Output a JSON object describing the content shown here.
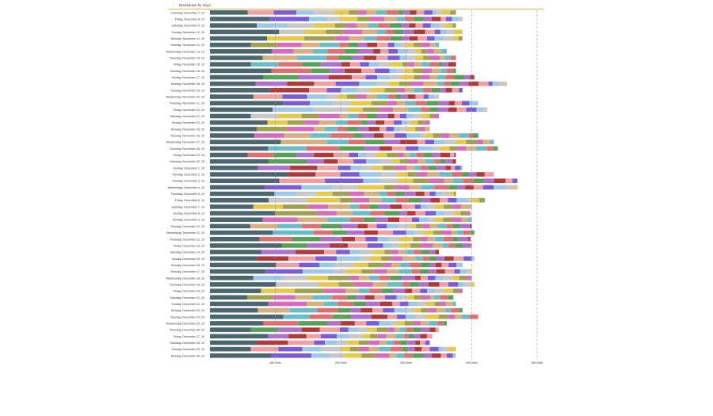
{
  "header": {
    "title": "Breakdown by Days",
    "chevron": "›"
  },
  "chart_data": {
    "type": "bar",
    "orientation": "horizontal",
    "stacked": true,
    "title": "Breakdown by Days",
    "categories": [
      "Thursday, November 7, 19",
      "Friday, November 8, 19",
      "Saturday, November 9, 19",
      "Sunday, November 10, 19",
      "Monday, November 11, 19",
      "Tuesday, November 12, 19",
      "Wednesday, November 13, 19",
      "Thursday, November 14, 19",
      "Friday, November 15, 19",
      "Saturday, November 16, 19",
      "Sunday, November 17, 19",
      "Monday, November 18, 19",
      "Tuesday, November 19, 19",
      "Wednesday, November 20, 19",
      "Thursday, November 21, 19",
      "Friday, November 22, 19",
      "Saturday, November 23, 19",
      "Sunday, November 24, 19",
      "Monday, November 25, 19",
      "Tuesday, November 26, 19",
      "Wednesday, November 27, 19",
      "Thursday, November 28, 19",
      "Friday, November 29, 19",
      "Saturday, November 30, 19",
      "Sunday, December 1, 19",
      "Monday, December 2, 19",
      "Tuesday, December 3, 19",
      "Wednesday, December 4, 19",
      "Thursday, December 5, 19",
      "Friday, December 6, 19",
      "Saturday, December 7, 19",
      "Sunday, December 8, 19",
      "Monday, December 9, 19",
      "Tuesday, December 10, 19",
      "Wednesday, December 11, 19",
      "Thursday, December 12, 19",
      "Friday, December 13, 19",
      "Saturday, December 14, 19",
      "Sunday, December 15, 19",
      "Monday, December 16, 19",
      "Tuesday, December 17, 19",
      "Wednesday, December 18, 19",
      "Thursday, December 19, 19",
      "Friday, December 20, 19",
      "Saturday, December 21, 19",
      "Sunday, December 22, 19",
      "Monday, December 23, 19",
      "Tuesday, December 24, 19",
      "Wednesday, December 25, 19",
      "Thursday, December 26, 19",
      "Friday, December 27, 19",
      "Saturday, December 28, 19",
      "Sunday, December 29, 19",
      "Monday, December 30, 19"
    ],
    "totals": [
      376,
      386,
      376,
      386,
      386,
      350,
      362,
      376,
      376,
      376,
      404,
      454,
      386,
      350,
      410,
      424,
      350,
      336,
      336,
      410,
      434,
      440,
      376,
      376,
      386,
      434,
      470,
      470,
      376,
      420,
      400,
      398,
      400,
      400,
      404,
      398,
      400,
      350,
      404,
      386,
      400,
      400,
      404,
      386,
      372,
      376,
      386,
      410,
      362,
      350,
      340,
      336,
      376,
      376
    ],
    "xlim": [
      0,
      500
    ],
    "xticks": [
      100,
      200,
      300,
      400,
      500
    ],
    "xtick_labels": [
      "100.0min",
      "200.0min",
      "300.0min",
      "400.0min",
      "500.0min"
    ],
    "palette": [
      "#4c6670",
      "#b03a3a",
      "#f0a0a0",
      "#7b5cd6",
      "#9ec8e8",
      "#c8c8c8",
      "#e6c84a",
      "#a0a050",
      "#d86ac0",
      "#d8b080",
      "#6abcc8",
      "#e07070",
      "#58a058",
      "#b070d0"
    ],
    "segment_shares": [
      0.22,
      0.13,
      0.1,
      0.07,
      0.07,
      0.05,
      0.05,
      0.04,
      0.04,
      0.04,
      0.04,
      0.03,
      0.03,
      0.03,
      0.03,
      0.03
    ],
    "grid": "vertical dashed",
    "legend": "none"
  }
}
